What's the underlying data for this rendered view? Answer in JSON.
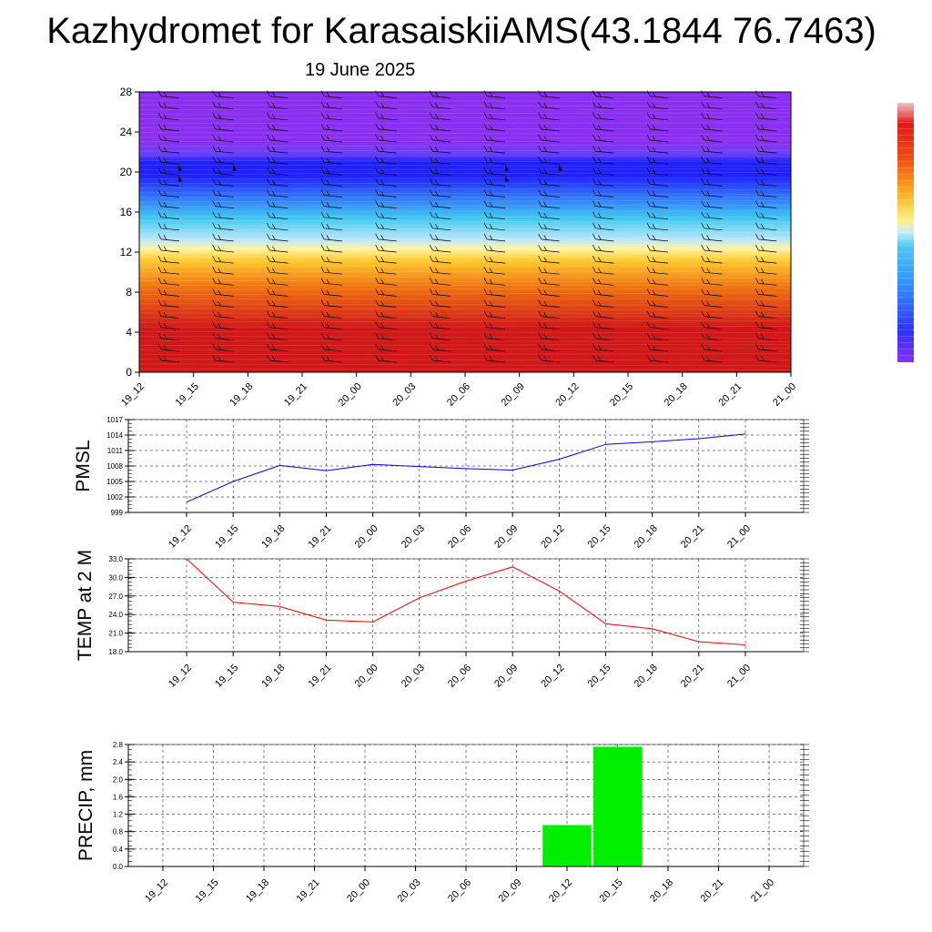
{
  "title": "Kazhydromet for KarasaiskiiAMS(43.1844 76.7463)",
  "subtitle": "19 June 2025",
  "chart_data": [
    {
      "type": "heatmap",
      "name": "cross-section",
      "x": [
        "19_12",
        "19_15",
        "19_18",
        "19_21",
        "20_00",
        "20_03",
        "20_06",
        "20_09",
        "20_12",
        "20_15",
        "20_18",
        "20_21",
        "21_00"
      ],
      "yticks": [
        "0",
        "4",
        "8",
        "12",
        "16",
        "20",
        "24",
        "28"
      ],
      "ylim": [
        0,
        28
      ],
      "wind_barbs": true,
      "colorbar": "rainbow",
      "colors": {
        "bottom": "#d01818",
        "mid_yellow": "#fff4a0",
        "cyan": "#40c8f0",
        "blue": "#2020ff",
        "top": "#8a2ff0"
      }
    },
    {
      "type": "line",
      "name": "pmsl",
      "ylabel": "PMSL",
      "x": [
        "19_12",
        "19_15",
        "19_18",
        "19_21",
        "20_00",
        "20_03",
        "20_06",
        "20_09",
        "20_12",
        "20_15",
        "20_18",
        "20_21",
        "21_00"
      ],
      "series": [
        {
          "values": [
            1001.0,
            1005.0,
            1008.1,
            1007.1,
            1008.3,
            1007.9,
            1007.5,
            1007.2,
            1009.3,
            1012.2,
            1012.7,
            1013.3,
            1014.2
          ],
          "color": "#0000ff"
        }
      ],
      "yticks": [
        "999",
        "1002",
        "1005",
        "1008",
        "1011",
        "1014",
        "1017"
      ],
      "ylim": [
        999,
        1017
      ],
      "grid": true
    },
    {
      "type": "line",
      "name": "temp",
      "ylabel": "TEMP at 2 M",
      "x": [
        "19_12",
        "19_15",
        "19_18",
        "19_21",
        "20_00",
        "20_03",
        "20_06",
        "20_09",
        "20_12",
        "20_15",
        "20_18",
        "20_21",
        "21_00"
      ],
      "series": [
        {
          "values": [
            33.0,
            26.0,
            25.3,
            23.1,
            22.8,
            26.7,
            29.4,
            31.7,
            27.8,
            22.5,
            21.7,
            19.6,
            19.1
          ],
          "color": "#ff0000"
        }
      ],
      "yticks": [
        "18.0",
        "21.0",
        "24.0",
        "27.0",
        "30.0",
        "33.0"
      ],
      "ylim": [
        18,
        33
      ],
      "grid": true
    },
    {
      "type": "bar",
      "name": "precip",
      "ylabel": "PRECIP, mm",
      "categories": [
        "19_12",
        "19_15",
        "19_18",
        "19_21",
        "20_00",
        "20_03",
        "20_06",
        "20_09",
        "20_12",
        "20_15",
        "20_18",
        "20_21",
        "21_00"
      ],
      "values": [
        0,
        0,
        0,
        0,
        0,
        0,
        0,
        0,
        0.95,
        2.75,
        0,
        0,
        0
      ],
      "yticks": [
        "0.0",
        "0.4",
        "0.8",
        "1.2",
        "1.6",
        "2.0",
        "2.4",
        "2.8"
      ],
      "ylim": [
        0,
        2.8
      ],
      "color": "#00ee00",
      "grid": true
    }
  ]
}
